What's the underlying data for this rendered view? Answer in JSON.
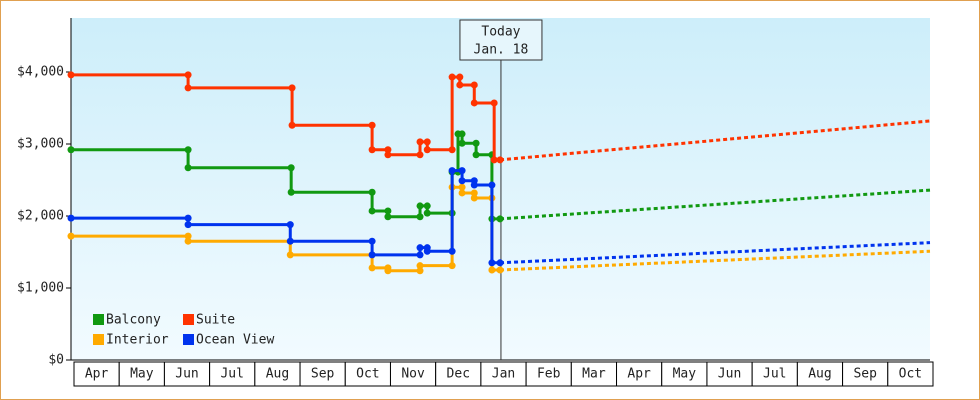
{
  "chart_data": {
    "type": "step-line",
    "ylim": [
      0,
      4750
    ],
    "yticks": [
      {
        "value": 0,
        "label": "$0"
      },
      {
        "value": 1000,
        "label": "$1,000"
      },
      {
        "value": 2000,
        "label": "$2,000"
      },
      {
        "value": 3000,
        "label": "$3,000"
      },
      {
        "value": 4000,
        "label": "$4,000"
      }
    ],
    "xlim": [
      0,
      19
    ],
    "xticks": [
      {
        "value": 0.5,
        "label": "Apr"
      },
      {
        "value": 1.5,
        "label": "May"
      },
      {
        "value": 2.5,
        "label": "Jun"
      },
      {
        "value": 3.5,
        "label": "Jul"
      },
      {
        "value": 4.5,
        "label": "Aug"
      },
      {
        "value": 5.5,
        "label": "Sep"
      },
      {
        "value": 6.5,
        "label": "Oct"
      },
      {
        "value": 7.5,
        "label": "Nov"
      },
      {
        "value": 8.5,
        "label": "Dec"
      },
      {
        "value": 9.5,
        "label": "Jan"
      },
      {
        "value": 10.5,
        "label": "Feb"
      },
      {
        "value": 11.5,
        "label": "Mar"
      },
      {
        "value": 12.5,
        "label": "Apr"
      },
      {
        "value": 13.5,
        "label": "May"
      },
      {
        "value": 14.5,
        "label": "Jun"
      },
      {
        "value": 15.5,
        "label": "Jul"
      },
      {
        "value": 16.5,
        "label": "Aug"
      },
      {
        "value": 17.5,
        "label": "Sep"
      },
      {
        "value": 18.5,
        "label": "Oct"
      }
    ],
    "annotation": {
      "text": [
        "Today",
        "Jan. 18"
      ],
      "x": 9.51
    },
    "legend": "lower left",
    "series": [
      {
        "name": "Balcony",
        "color": "#119911",
        "x": [
          0,
          2.59,
          2.59,
          4.87,
          4.87,
          6.66,
          6.66,
          7.01,
          7.01,
          7.72,
          7.72,
          7.88,
          7.88,
          8.43,
          8.43,
          8.56,
          8.56,
          8.65,
          8.65,
          8.96,
          8.96,
          9.31,
          9.31,
          9.49
        ],
        "values": [
          2920,
          2920,
          2670,
          2670,
          2330,
          2330,
          2070,
          2070,
          1990,
          1990,
          2140,
          2140,
          2040,
          2040,
          2610,
          2610,
          3140,
          3140,
          3010,
          3010,
          2850,
          2850,
          1960,
          1960
        ],
        "forecast": {
          "x": [
            9.49,
            19
          ],
          "values": [
            1960,
            2360
          ]
        }
      },
      {
        "name": "Suite",
        "color": "#ff3300",
        "x": [
          0,
          2.59,
          2.59,
          4.89,
          4.89,
          6.66,
          6.66,
          7.01,
          7.01,
          7.72,
          7.72,
          7.88,
          7.88,
          8.43,
          8.43,
          8.6,
          8.6,
          8.92,
          8.92,
          9.36,
          9.36,
          9.49
        ],
        "values": [
          3960,
          3960,
          3780,
          3780,
          3260,
          3260,
          2920,
          2920,
          2850,
          2850,
          3030,
          3030,
          2920,
          2920,
          3930,
          3930,
          3820,
          3820,
          3570,
          3570,
          2780,
          2780
        ],
        "forecast": {
          "x": [
            9.49,
            19
          ],
          "values": [
            2780,
            3320
          ]
        }
      },
      {
        "name": "Interior",
        "color": "#ffaa00",
        "x": [
          0,
          2.59,
          2.59,
          4.85,
          4.85,
          6.66,
          6.66,
          7.01,
          7.01,
          7.72,
          7.72,
          8.43,
          8.43,
          8.65,
          8.65,
          8.92,
          8.92,
          9.31,
          9.31,
          9.49
        ],
        "values": [
          1720,
          1720,
          1650,
          1650,
          1460,
          1460,
          1280,
          1280,
          1240,
          1240,
          1310,
          1310,
          2400,
          2400,
          2320,
          2320,
          2250,
          2250,
          1250,
          1250
        ],
        "forecast": {
          "x": [
            9.49,
            19
          ],
          "values": [
            1250,
            1510
          ]
        }
      },
      {
        "name": "Ocean View",
        "color": "#0033ee",
        "x": [
          0,
          2.59,
          2.59,
          4.85,
          4.85,
          6.66,
          6.66,
          7.72,
          7.72,
          7.88,
          7.88,
          8.43,
          8.43,
          8.65,
          8.65,
          8.92,
          8.92,
          9.31,
          9.31,
          9.49
        ],
        "values": [
          1970,
          1970,
          1880,
          1880,
          1650,
          1650,
          1460,
          1460,
          1560,
          1560,
          1510,
          1510,
          2630,
          2630,
          2490,
          2490,
          2430,
          2430,
          1350,
          1350
        ],
        "forecast": {
          "x": [
            9.49,
            19
          ],
          "values": [
            1350,
            1630
          ]
        }
      }
    ]
  }
}
